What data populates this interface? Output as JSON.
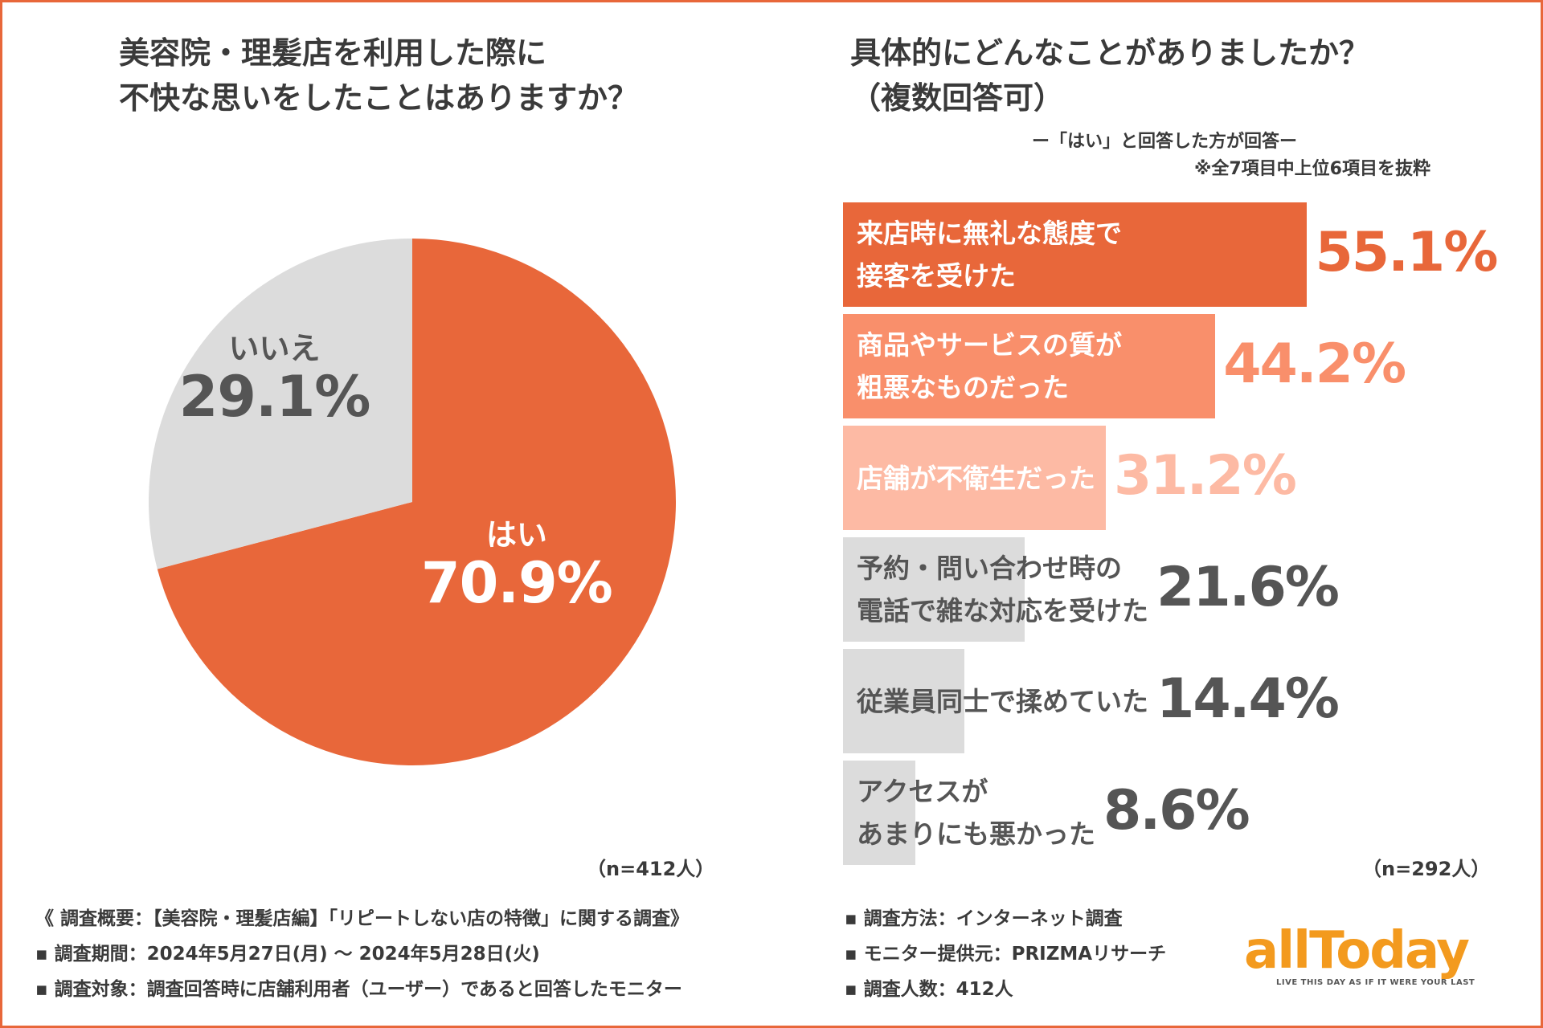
{
  "colors": {
    "accent": "#E8673A",
    "pie_yes": "#E8673A",
    "pie_no": "#DCDCDC",
    "text_dark": "#3a3a3a",
    "text_gray": "#555555",
    "logo": "#F39A1E"
  },
  "pie": {
    "title_line1": "美容院・理髪店を利用した際に",
    "title_line2": "不快な思いをしたことはありますか？",
    "n_label": "（n=412人）"
  },
  "bars": {
    "title_line1": "具体的にどんなことがありましたか？",
    "title_line2": "（複数回答可）",
    "note_line1": "ー「はい」と回答した方が回答ー",
    "note_line2": "※全7項目中上位6項目を抜粋",
    "n_label": "（n=292人）"
  },
  "chart_data": [
    {
      "type": "pie",
      "title": "美容院・理髪店を利用した際に不快な思いをしたことはありますか？",
      "slices": [
        {
          "label": "はい",
          "value": 70.9,
          "value_text": "70.9%",
          "color": "#E8673A",
          "text_color": "#ffffff"
        },
        {
          "label": "いいえ",
          "value": 29.1,
          "value_text": "29.1%",
          "color": "#DCDCDC",
          "text_color": "#555555"
        }
      ]
    },
    {
      "type": "bar",
      "orientation": "horizontal",
      "title": "具体的にどんなことがありましたか？（複数回答可）",
      "xlim": [
        0,
        100
      ],
      "categories": [
        [
          "来店時に無礼な態度で",
          "接客を受けた"
        ],
        [
          "商品やサービスの質が",
          "粗悪なものだった"
        ],
        [
          "店舗が不衛生だった"
        ],
        [
          "予約・問い合わせ時の",
          "電話で雑な対応を受けた"
        ],
        [
          "従業員同士で揉めていた"
        ],
        [
          "アクセスが",
          "あまりにも悪かった"
        ]
      ],
      "values": [
        55.1,
        44.2,
        31.2,
        21.6,
        14.4,
        8.6
      ],
      "value_texts": [
        "55.1%",
        "44.2%",
        "31.2%",
        "21.6%",
        "14.4%",
        "8.6%"
      ],
      "bar_colors": [
        "#E8673A",
        "#F98F6B",
        "#FDBAA4",
        "#DCDCDC",
        "#DCDCDC",
        "#DCDCDC"
      ],
      "label_colors": [
        "#ffffff",
        "#ffffff",
        "#ffffff",
        "#555555",
        "#555555",
        "#555555"
      ],
      "value_colors": [
        "#E8673A",
        "#F98F6B",
        "#FDBAA4",
        "#555555",
        "#555555",
        "#555555"
      ]
    }
  ],
  "footer": {
    "left": [
      "《 調査概要：【美容院・理髪店編】「リピートしない店の特徴」に関する調査》",
      "▪ 調査期間：2024年5月27日(月) 〜 2024年5月28日(火)",
      "▪ 調査対象：調査回答時に店舗利用者（ユーザー）であると回答したモニター"
    ],
    "right": [
      "▪ 調査方法：インターネット調査",
      "▪ モニター提供元：PRIZMAリサーチ",
      "▪ 調査人数：412人"
    ]
  },
  "logo": {
    "text": "allToday",
    "tagline": "LIVE THIS DAY AS IF IT WERE YOUR LAST"
  }
}
